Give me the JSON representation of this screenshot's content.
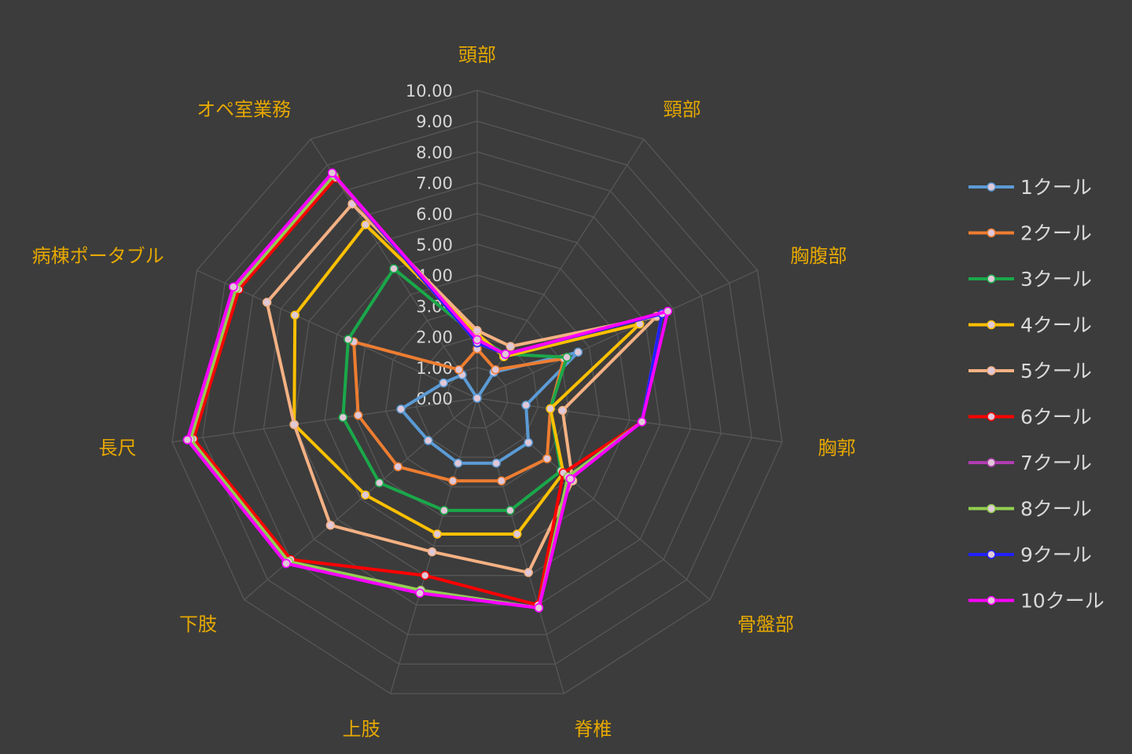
{
  "chart_data": {
    "type": "radar",
    "categories": [
      "頭部",
      "頸部",
      "胸腹部",
      "胸郭",
      "骨盤部",
      "脊椎",
      "上肢",
      "下肢",
      "長尺",
      "病棟ポータブル",
      "オペ室業務"
    ],
    "ticks": [
      "0.00",
      "1.00",
      "2.00",
      "3.00",
      "4.00",
      "5.00",
      "6.00",
      "7.00",
      "8.00",
      "9.00",
      "10.00"
    ],
    "rlim": [
      0,
      10
    ],
    "grid": true,
    "legend_position": "right",
    "series": [
      {
        "name": "1クール",
        "color": "#5b9bd5",
        "values": [
          0,
          1.0,
          3.6,
          1.6,
          2.2,
          2.2,
          2.2,
          2.1,
          2.5,
          1.2,
          0.9
        ]
      },
      {
        "name": "2クール",
        "color": "#ed7d31",
        "values": [
          1.6,
          1.1,
          3.1,
          2.4,
          3.0,
          2.8,
          2.8,
          3.4,
          3.9,
          4.4,
          1.1
        ]
      },
      {
        "name": "3クール",
        "color": "#1aa84a",
        "values": [
          2.0,
          1.7,
          3.2,
          2.4,
          3.6,
          3.8,
          3.8,
          4.2,
          4.4,
          4.6,
          5.0
        ]
      },
      {
        "name": "4クール",
        "color": "#ffc000",
        "values": [
          2.1,
          1.6,
          5.8,
          2.4,
          3.7,
          4.6,
          4.6,
          4.8,
          6.0,
          6.5,
          6.7
        ]
      },
      {
        "name": "5クール",
        "color": "#f4b183",
        "values": [
          2.2,
          2.0,
          6.4,
          2.8,
          4.1,
          5.9,
          5.2,
          6.3,
          6.0,
          7.5,
          7.5
        ]
      },
      {
        "name": "6クール",
        "color": "#ff0000",
        "values": [
          1.8,
          1.7,
          6.6,
          5.4,
          3.7,
          7.0,
          6.0,
          8.0,
          9.3,
          8.5,
          8.5
        ]
      },
      {
        "name": "7クール",
        "color": "#b03cb0",
        "values": [
          1.8,
          1.7,
          6.6,
          5.4,
          3.9,
          7.1,
          6.5,
          8.1,
          9.4,
          8.6,
          8.6
        ]
      },
      {
        "name": "8クール",
        "color": "#92d050",
        "values": [
          1.8,
          1.7,
          6.6,
          5.4,
          3.9,
          7.1,
          6.5,
          8.1,
          9.4,
          8.6,
          8.6
        ]
      },
      {
        "name": "9クール",
        "color": "#2020ff",
        "values": [
          1.8,
          1.7,
          6.6,
          5.4,
          4.0,
          7.1,
          6.6,
          8.2,
          9.5,
          8.7,
          8.7
        ]
      },
      {
        "name": "10クール",
        "color": "#ff00ff",
        "values": [
          1.9,
          1.7,
          6.8,
          5.4,
          4.0,
          7.1,
          6.6,
          8.2,
          9.5,
          8.7,
          8.7
        ]
      }
    ]
  }
}
